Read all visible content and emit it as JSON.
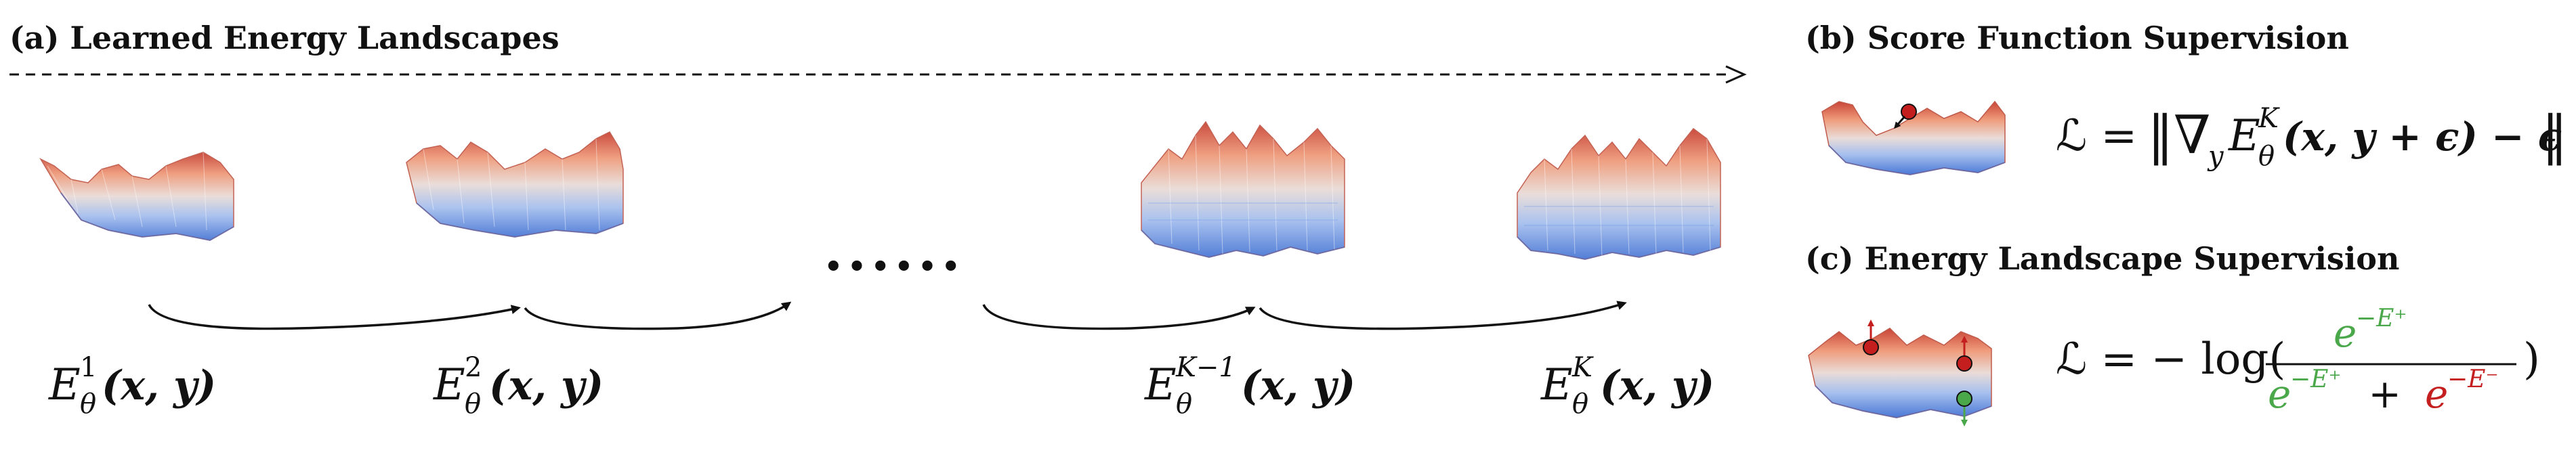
{
  "panel_a": {
    "title": "(a) Learned Energy Landscapes",
    "labels": [
      {
        "base": "E",
        "sub": "θ",
        "sup": "1",
        "tail": "(x, y)"
      },
      {
        "base": "E",
        "sub": "θ",
        "sup": "2",
        "tail": "(x, y)"
      },
      {
        "base": "E",
        "sub": "θ",
        "sup": "K−1",
        "tail": "(x, y)"
      },
      {
        "base": "E",
        "sub": "θ",
        "sup": "K",
        "tail": "(x, y)"
      }
    ],
    "ellipsis": "••••••"
  },
  "panel_b": {
    "title": "(b) Score Function Supervision",
    "loss_lhs": "ℒ = ",
    "loss_norm_open": "‖∇",
    "loss_grad_sub": "y",
    "loss_E": "E",
    "loss_E_sub": "θ",
    "loss_E_sup": "K",
    "loss_args": "(x, y + ϵ) − ϵ",
    "loss_norm_close": "‖"
  },
  "panel_c": {
    "title": "(c) Energy Landscape Supervision",
    "loss_lhs": "ℒ = − log(",
    "numerator": "e",
    "numerator_exp": "−E⁺",
    "den_pos": "e",
    "den_pos_exp": "−E⁺",
    "den_plus": " + ",
    "den_neg": "e",
    "den_neg_exp": "−E⁻",
    "loss_close": ")"
  },
  "colors": {
    "surface_high": "#d6604d",
    "surface_mid": "#e8e0dd",
    "surface_low": "#5b8be0",
    "positive": "#4aa84a",
    "negative": "#c41e1e",
    "arrow": "#111111"
  }
}
